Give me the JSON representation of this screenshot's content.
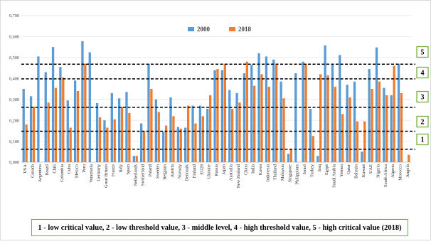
{
  "chart_data": {
    "type": "bar",
    "ylim": [
      0,
      0.7
    ],
    "y_ticks": [
      "0,000",
      "0,100",
      "0,200",
      "0,300",
      "0,400",
      "0,500",
      "0,600",
      "0,700"
    ],
    "categories": [
      "USA",
      "Canada",
      "Argentina",
      "Brazil",
      "Chili",
      "Columbia",
      "Cuba",
      "Mexico",
      "Peru",
      "Venezuela",
      "Germany",
      "Great Britain",
      "France",
      "Italy",
      "Spain",
      "Netherlands",
      "Switzerland",
      "Poland",
      "Sweden",
      "Belgium",
      "Austria",
      "Norway",
      "Denmark",
      "Finland",
      "EU28",
      "Ukraine",
      "Russia",
      "Japan",
      "Australia",
      "New Zealand",
      "China",
      "India",
      "Korea",
      "Indonesia",
      "Thailand",
      "Malaysia",
      "Singapore",
      "Philippines",
      "Israel",
      "Turkey",
      "Iraq",
      "Egypt",
      "Saudi Arabia",
      "Yemen",
      "Qatar",
      "Bahrain",
      "Kuwait",
      "UAE",
      "Nigeria",
      "South Africa",
      "Algeria",
      "Morocco",
      "Angola"
    ],
    "series": [
      {
        "name": "2000",
        "color": "#5b9bd5",
        "values": [
          0.35,
          0.315,
          0.505,
          0.43,
          0.55,
          0.455,
          0.295,
          0.39,
          0.578,
          0.525,
          0.282,
          0.2,
          0.33,
          0.305,
          0.335,
          0.03,
          0.185,
          0.47,
          0.3,
          0.145,
          0.31,
          0.168,
          0.165,
          0.27,
          0.27,
          0.255,
          0.44,
          0.44,
          0.345,
          0.33,
          0.425,
          0.465,
          0.52,
          0.505,
          0.49,
          0.385,
          0.04,
          0.425,
          0.48,
          0.255,
          0.03,
          0.558,
          0.47,
          0.512,
          0.37,
          0.385,
          0.05,
          0.445,
          0.548,
          0.355,
          0.32,
          0.47,
          0.0
        ]
      },
      {
        "name": "2018",
        "color": "#ed7d31",
        "values": [
          0.18,
          0.265,
          0.0,
          0.285,
          0.355,
          0.405,
          0.165,
          0.34,
          0.47,
          0.0,
          0.215,
          0.165,
          0.205,
          0.265,
          0.235,
          0.03,
          0.15,
          0.35,
          0.24,
          0.175,
          0.22,
          0.16,
          0.27,
          0.185,
          0.22,
          0.32,
          0.445,
          0.47,
          0.255,
          0.285,
          0.48,
          0.365,
          0.42,
          0.36,
          0.465,
          0.305,
          0.06,
          0.0,
          0.47,
          0.125,
          0.42,
          0.415,
          0.36,
          0.23,
          0.31,
          0.195,
          0.195,
          0.35,
          0.385,
          0.32,
          0.46,
          0.33,
          0.035
        ]
      }
    ],
    "thresholds": [
      {
        "label": "1",
        "value": 0.062
      },
      {
        "label": "2",
        "value": 0.148
      },
      {
        "label": "3",
        "value": 0.262
      },
      {
        "label": "4",
        "value": 0.398
      },
      {
        "label": "5",
        "value": 0.468
      }
    ],
    "note": "1 - low critical value, 2 - low threshold value, 3 - middle level, 4 - high threshold value, 5 - high critical value (2018)"
  }
}
